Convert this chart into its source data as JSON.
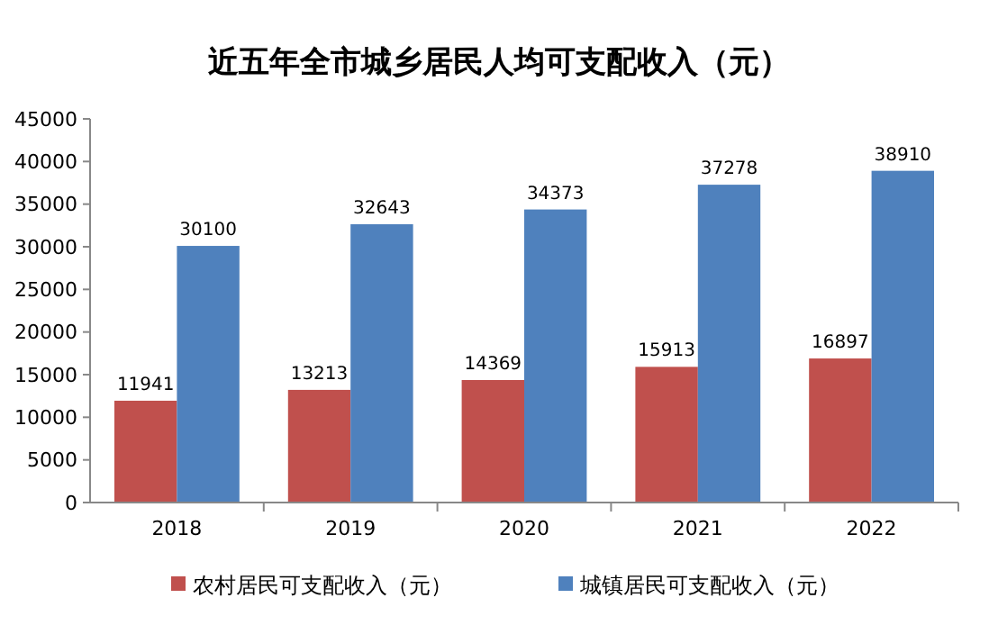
{
  "chart_data": {
    "type": "bar",
    "title": "近五年全市城乡居民人均可支配收入（元）",
    "categories": [
      "2018",
      "2019",
      "2020",
      "2021",
      "2022"
    ],
    "series": [
      {
        "name": "农村居民可支配收入（元）",
        "color": "#c0504d",
        "values": [
          11941,
          13213,
          14369,
          15913,
          16897
        ]
      },
      {
        "name": "城镇居民可支配收入（元）",
        "color": "#4f81bd",
        "values": [
          30100,
          32643,
          34373,
          37278,
          38910
        ]
      }
    ],
    "ylim": [
      0,
      45000
    ],
    "yticks": [
      0,
      5000,
      10000,
      15000,
      20000,
      25000,
      30000,
      35000,
      40000,
      45000
    ],
    "data_labels": true,
    "legend": "bottom",
    "grid": false
  }
}
